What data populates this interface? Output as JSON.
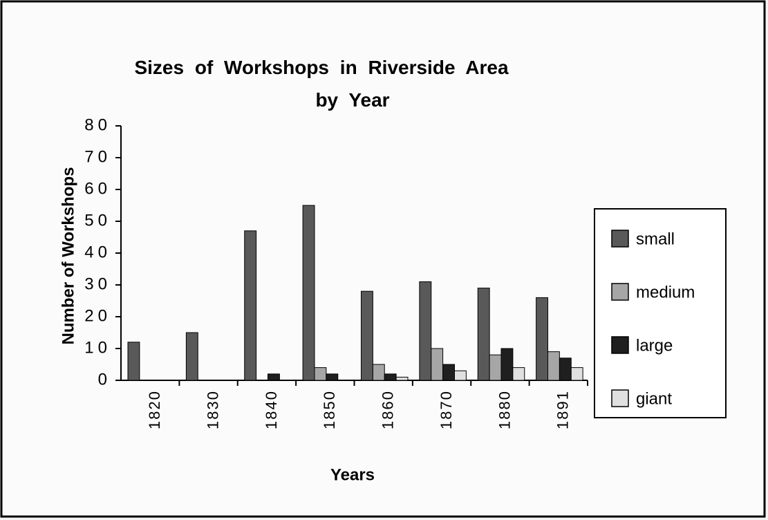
{
  "chart_data": {
    "type": "bar",
    "title": "Sizes of Workshops in Riverside Area by Year",
    "x_label": "Years",
    "y_label": "Number of Workshops",
    "categories": [
      "1820",
      "1830",
      "1840",
      "1850",
      "1860",
      "1870",
      "1880",
      "1891"
    ],
    "series": [
      {
        "name": "small",
        "color": "#595959",
        "values": [
          12,
          15,
          47,
          55,
          28,
          31,
          29,
          26
        ]
      },
      {
        "name": "medium",
        "color": "#a6a6a6",
        "values": [
          0,
          0,
          0,
          4,
          5,
          10,
          8,
          9
        ]
      },
      {
        "name": "large",
        "color": "#1f1f1f",
        "values": [
          0,
          0,
          2,
          2,
          2,
          5,
          10,
          7
        ]
      },
      {
        "name": "giant",
        "color": "#e0e0e0",
        "values": [
          0,
          0,
          0,
          0,
          1,
          3,
          4,
          4
        ]
      }
    ],
    "ylim": [
      0,
      80
    ],
    "yticks": [
      0,
      10,
      20,
      30,
      40,
      50,
      60,
      70,
      80
    ],
    "legend": "right"
  }
}
